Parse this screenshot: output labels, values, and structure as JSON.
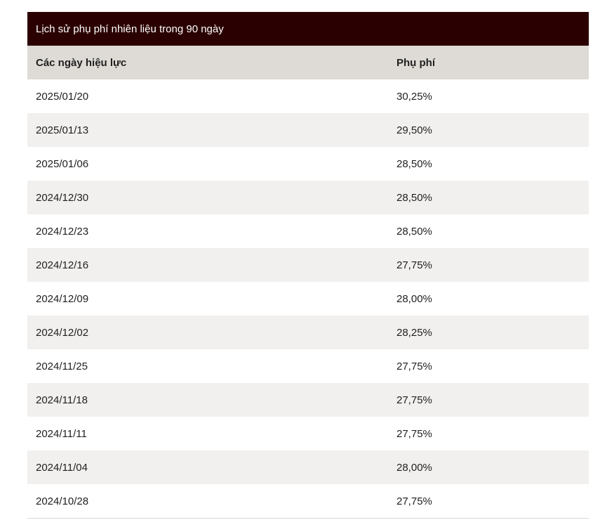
{
  "table": {
    "caption": "Lịch sử phụ phí nhiên liệu trong 90 ngày",
    "headers": {
      "date": "Các ngày hiệu lực",
      "fee": "Phụ phí"
    },
    "rows": [
      {
        "date": "2025/01/20",
        "fee": "30,25%"
      },
      {
        "date": "2025/01/13",
        "fee": "29,50%"
      },
      {
        "date": "2025/01/06",
        "fee": "28,50%"
      },
      {
        "date": "2024/12/30",
        "fee": "28,50%"
      },
      {
        "date": "2024/12/23",
        "fee": "28,50%"
      },
      {
        "date": "2024/12/16",
        "fee": "27,75%"
      },
      {
        "date": "2024/12/09",
        "fee": "28,00%"
      },
      {
        "date": "2024/12/02",
        "fee": "28,25%"
      },
      {
        "date": "2024/11/25",
        "fee": "27,75%"
      },
      {
        "date": "2024/11/18",
        "fee": "27,75%"
      },
      {
        "date": "2024/11/11",
        "fee": "27,75%"
      },
      {
        "date": "2024/11/04",
        "fee": "28,00%"
      },
      {
        "date": "2024/10/28",
        "fee": "27,75%"
      }
    ]
  },
  "colors": {
    "caption_bg": "#2b0000",
    "header_bg": "#dedbd6",
    "stripe_bg": "#f2f0ee"
  }
}
